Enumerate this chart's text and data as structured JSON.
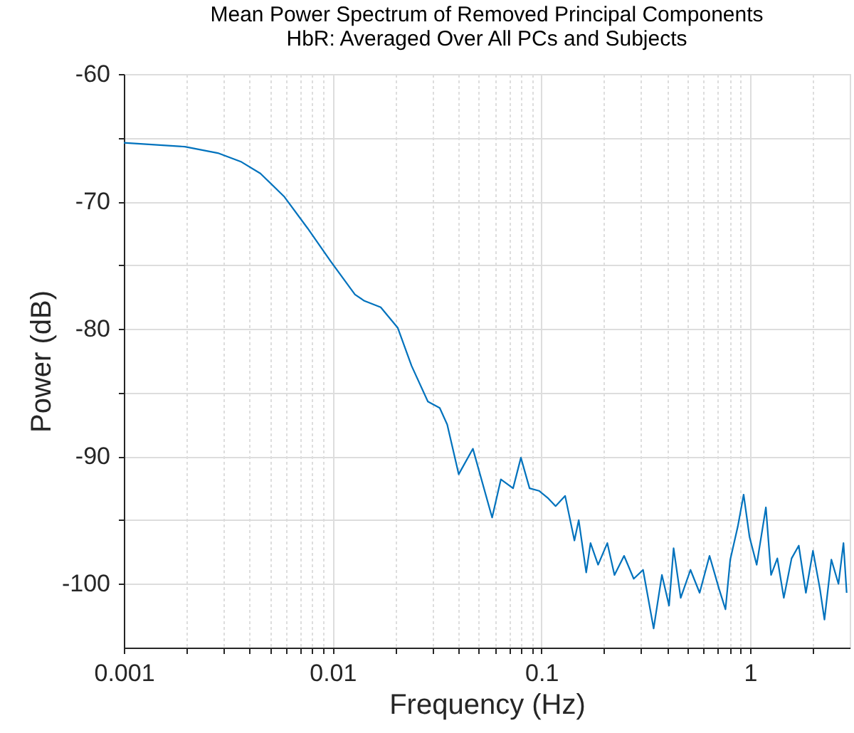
{
  "chart_data": {
    "type": "line",
    "title": "Mean Power Spectrum of Removed Principal Components",
    "subtitle": "HbR: Averaged Over All PCs and Subjects",
    "xlabel": "Frequency (Hz)",
    "ylabel": "Power (dB)",
    "log": "x",
    "grid": true,
    "x": [
      0.001,
      0.00196,
      0.00282,
      0.00366,
      0.00451,
      0.00585,
      0.00759,
      0.0098,
      0.0128,
      0.0142,
      0.017,
      0.0205,
      0.0239,
      0.0286,
      0.0326,
      0.0354,
      0.0402,
      0.047,
      0.0581,
      0.064,
      0.0732,
      0.0798,
      0.0878,
      0.0975,
      0.108,
      0.117,
      0.13,
      0.144,
      0.151,
      0.164,
      0.172,
      0.187,
      0.207,
      0.224,
      0.249,
      0.277,
      0.307,
      0.345,
      0.378,
      0.409,
      0.43,
      0.465,
      0.518,
      0.573,
      0.639,
      0.71,
      0.762,
      0.803,
      0.873,
      0.931,
      0.993,
      1.075,
      1.13,
      1.19,
      1.26,
      1.35,
      1.45,
      1.58,
      1.71,
      1.85,
      2.0,
      2.16,
      2.27,
      2.45,
      2.65,
      2.8,
      2.9
    ],
    "series": [
      {
        "color": "#0072bd",
        "values": [
          -65.4,
          -65.7,
          -66.2,
          -66.9,
          -67.8,
          -69.6,
          -72.1,
          -74.7,
          -77.3,
          -77.8,
          -78.3,
          -79.9,
          -82.9,
          -85.7,
          -86.2,
          -87.5,
          -91.4,
          -89.4,
          -94.8,
          -91.8,
          -92.5,
          -90.1,
          -92.5,
          -92.7,
          -93.3,
          -93.9,
          -93.1,
          -96.6,
          -95.0,
          -99.1,
          -96.8,
          -98.5,
          -96.8,
          -99.3,
          -97.8,
          -99.6,
          -98.9,
          -103.5,
          -99.3,
          -101.7,
          -97.2,
          -101.1,
          -98.9,
          -100.7,
          -97.8,
          -100.4,
          -102.0,
          -98.1,
          -95.5,
          -93.0,
          -96.3,
          -98.5,
          -96.3,
          -94.0,
          -99.3,
          -98.0,
          -101.1,
          -98.0,
          -97.0,
          -100.7,
          -97.4,
          -100.4,
          -102.8,
          -98.1,
          -100.0,
          -96.8,
          -100.7
        ]
      }
    ],
    "xlim": [
      0.001,
      3
    ],
    "xticks": [
      0.001,
      {
        "value": 0.002,
        "label": null
      },
      {
        "value": 0.003,
        "label": null
      },
      {
        "value": 0.004,
        "label": null
      },
      {
        "value": 0.005,
        "label": null
      },
      {
        "value": 0.006,
        "label": null
      },
      {
        "value": 0.007,
        "label": null
      },
      {
        "value": 0.008,
        "label": null
      },
      {
        "value": 0.009,
        "label": null
      },
      0.01,
      {
        "value": 0.02,
        "label": null
      },
      {
        "value": 0.03,
        "label": null
      },
      {
        "value": 0.04,
        "label": null
      },
      {
        "value": 0.05,
        "label": null
      },
      {
        "value": 0.06,
        "label": null
      },
      {
        "value": 0.07,
        "label": null
      },
      {
        "value": 0.08,
        "label": null
      },
      {
        "value": 0.09,
        "label": null
      },
      0.1,
      {
        "value": 0.2,
        "label": null
      },
      {
        "value": 0.3,
        "label": null
      },
      {
        "value": 0.4,
        "label": null
      },
      {
        "value": 0.5,
        "label": null
      },
      {
        "value": 0.6,
        "label": null
      },
      {
        "value": 0.7,
        "label": null
      },
      {
        "value": 0.8,
        "label": null
      },
      {
        "value": 0.9,
        "label": null
      },
      1,
      {
        "value": 2,
        "label": null
      }
    ],
    "ylim": [
      -105,
      -60
    ],
    "yticks": [
      -100,
      {
        "value": -95,
        "label": null
      },
      -90,
      {
        "value": -85,
        "label": null
      },
      -80,
      {
        "value": -75,
        "label": null
      },
      -70,
      {
        "value": -65,
        "label": null
      },
      -60
    ]
  }
}
